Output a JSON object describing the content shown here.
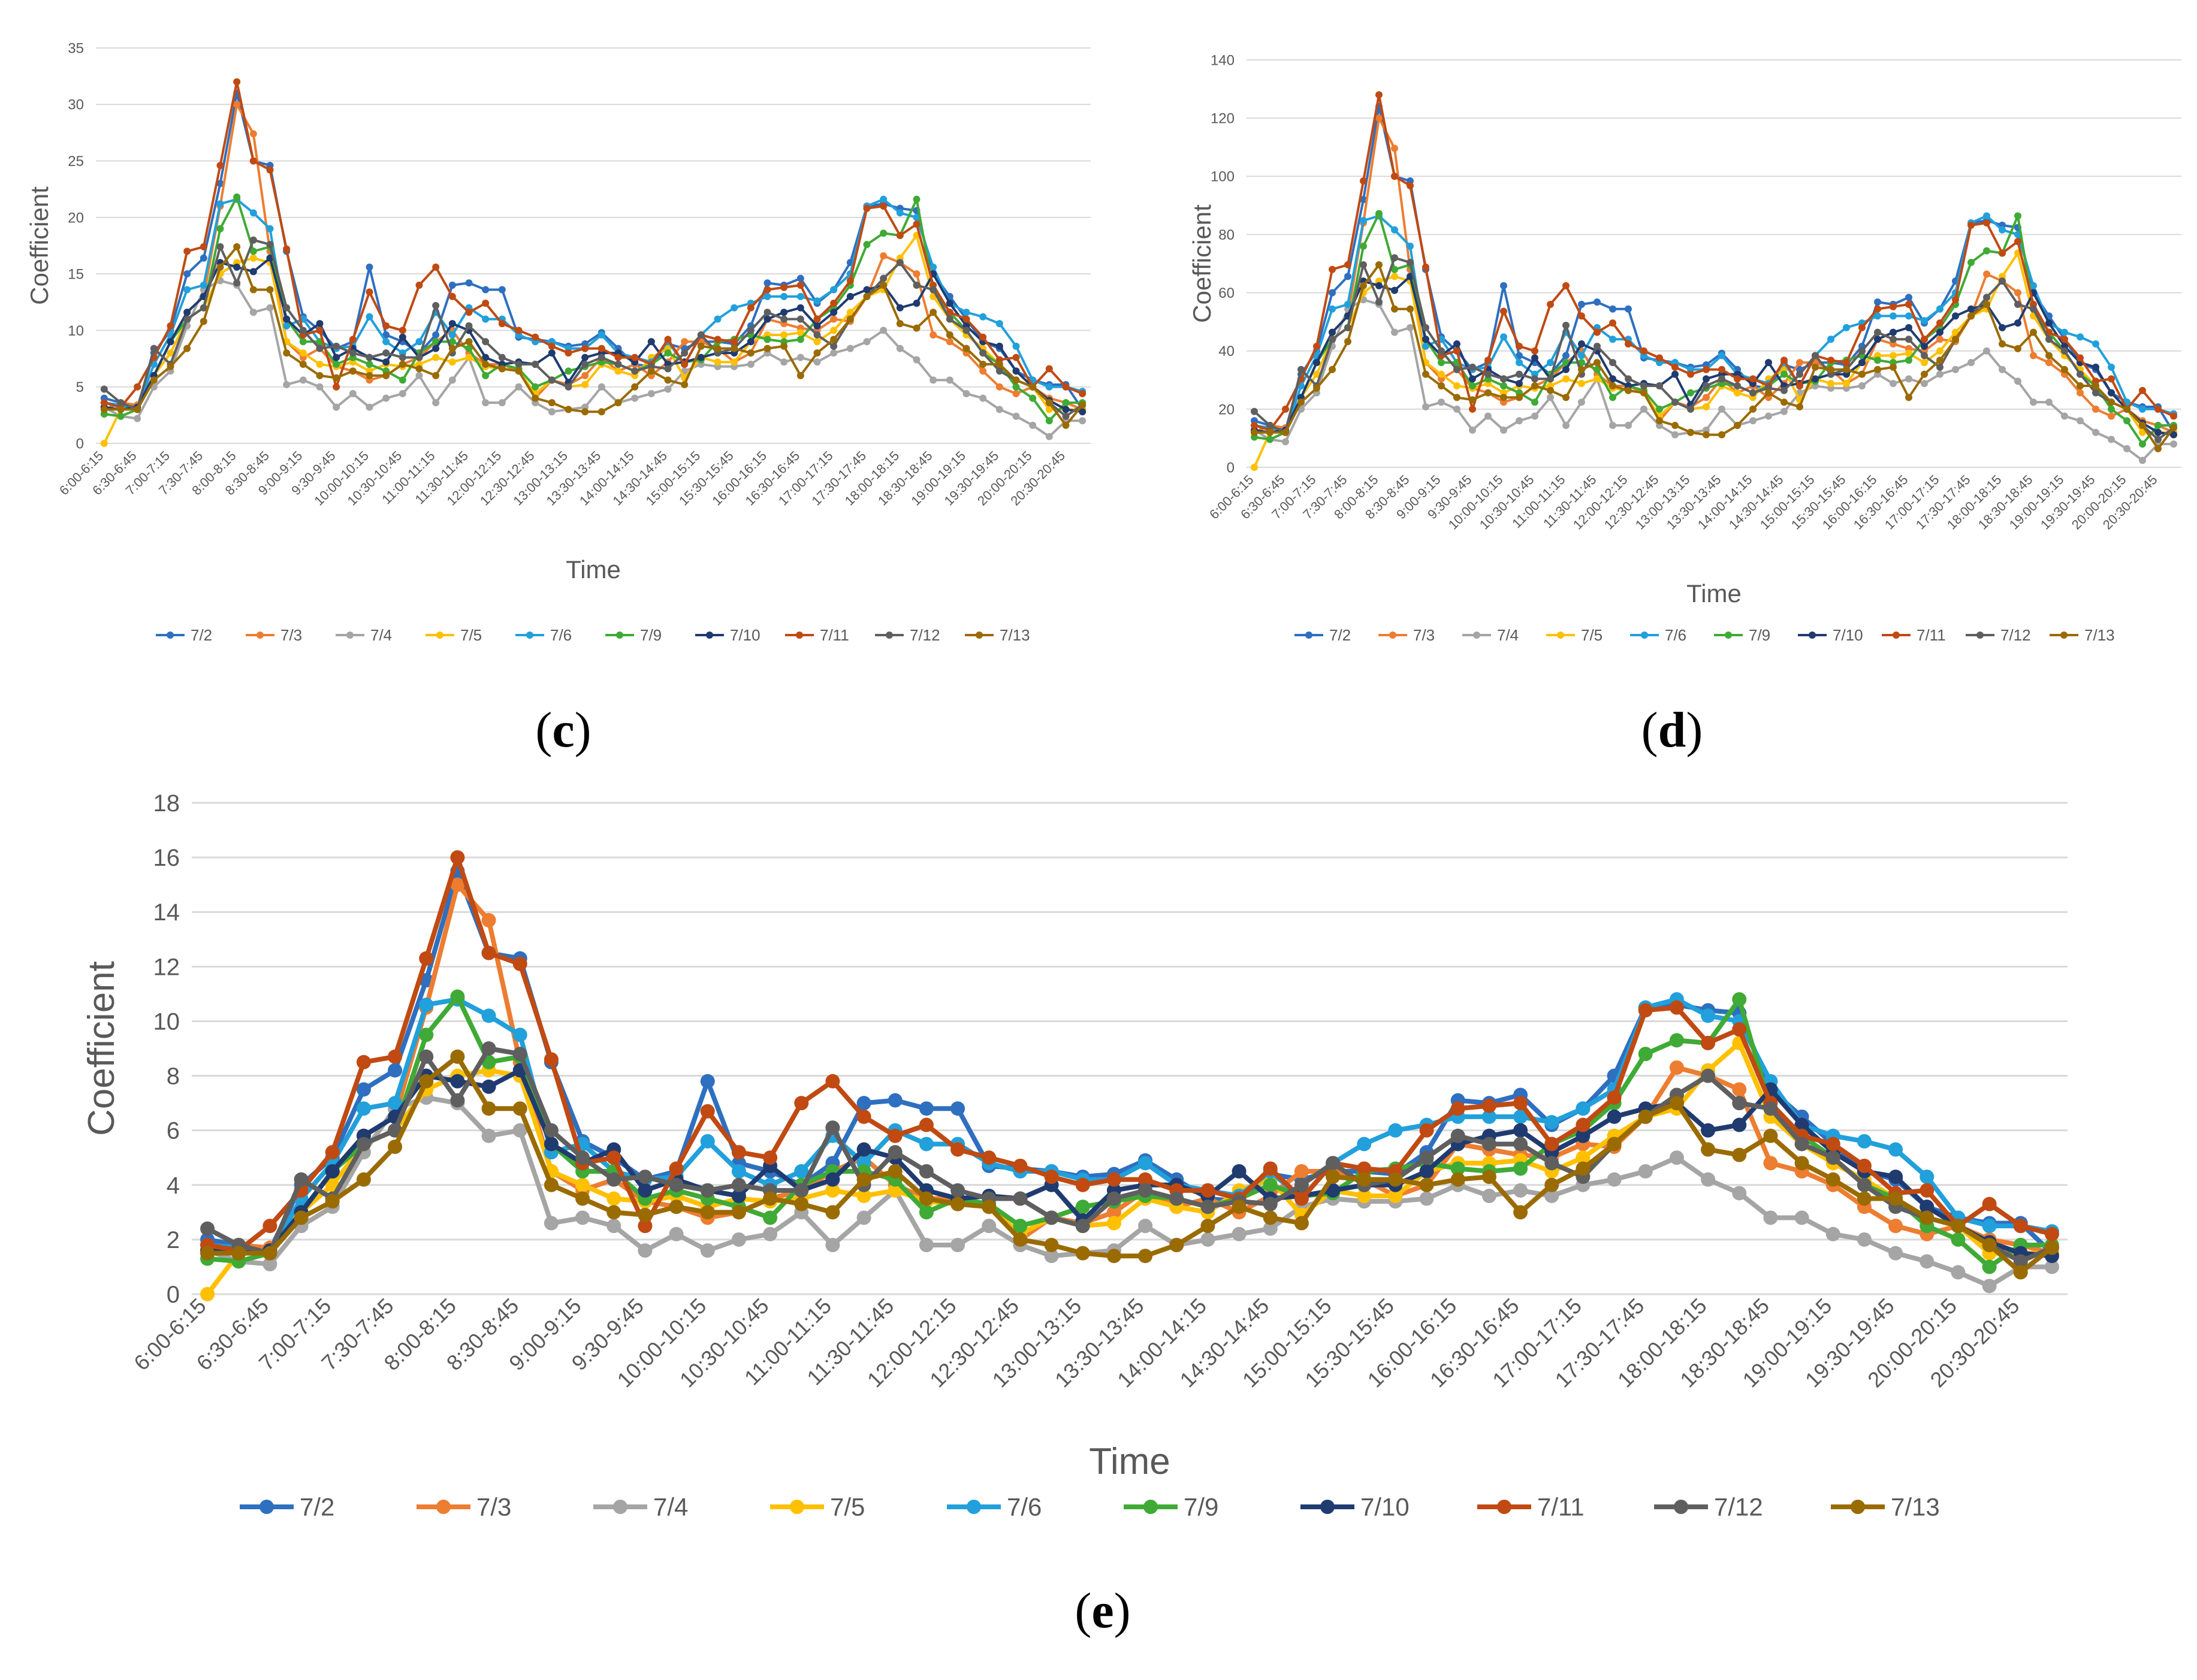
{
  "captions": {
    "c": "c",
    "d": "d",
    "e": "e"
  },
  "chart_data": [
    {
      "panel": "c",
      "type": "line",
      "xlabel": "Time",
      "ylabel": "Coefficient",
      "ylim": [
        0,
        35
      ],
      "yticks": [
        0,
        5,
        10,
        15,
        20,
        25,
        30,
        35
      ],
      "grid": "horizontal",
      "legend_position": "bottom",
      "tick_labels": [
        "6:00-6:15",
        "6:30-6:45",
        "7:00-7:15",
        "7:30-7:45",
        "8:00-8:15",
        "8:30-8:45",
        "9:00-9:15",
        "9:30-9:45",
        "10:00-10:15",
        "10:30-10:45",
        "11:00-11:15",
        "11:30-11:45",
        "12:00-12:15",
        "12:30-12:45",
        "13:00-13:15",
        "13:30-13:45",
        "14:00-14:15",
        "14:30-14:45",
        "15:00-15:15",
        "15:30-15:45",
        "16:00-16:15",
        "16:30-16:45",
        "17:00-17:15",
        "17:30-17:45",
        "18:00-18:15",
        "18:30-18:45",
        "19:00-19:15",
        "19:30-19:45",
        "20:00-20:15",
        "20:30-20:45"
      ],
      "scale": 2.0
    },
    {
      "panel": "d",
      "type": "line",
      "xlabel": "Time",
      "ylabel": "Coefficient",
      "ylim": [
        0,
        140
      ],
      "yticks": [
        0,
        20,
        40,
        60,
        80,
        100,
        120,
        140
      ],
      "grid": "horizontal",
      "legend_position": "bottom",
      "tick_labels": [
        "6:00-6:15",
        "6:30-6:45",
        "7:00-7:15",
        "7:30-7:45",
        "8:00-8:15",
        "8:30-8:45",
        "9:00-9:15",
        "9:30-9:45",
        "10:00-10:15",
        "10:30-10:45",
        "11:00-11:15",
        "11:30-11:45",
        "12:00-12:15",
        "12:30-12:45",
        "13:00-13:15",
        "13:30-13:45",
        "14:00-14:15",
        "14:30-14:45",
        "15:00-15:15",
        "15:30-15:45",
        "16:00-16:15",
        "16:30-16:45",
        "17:00-17:15",
        "17:30-17:45",
        "18:00-18:15",
        "18:30-18:45",
        "19:00-19:15",
        "19:30-19:45",
        "20:00-20:15",
        "20:30-20:45"
      ],
      "scale": 8.0
    },
    {
      "panel": "e",
      "type": "line",
      "xlabel": "Time",
      "ylabel": "Coefficient",
      "ylim": [
        0,
        18
      ],
      "yticks": [
        0,
        2,
        4,
        6,
        8,
        10,
        12,
        14,
        16,
        18
      ],
      "grid": "horizontal",
      "legend_position": "bottom",
      "tick_labels": [
        "6:00-6:15",
        "6:30-6:45",
        "7:00-7:15",
        "7:30-7:45",
        "8:00-8:15",
        "8:30-8:45",
        "9:00-9:15",
        "9:30-9:45",
        "10:00-10:15",
        "10:30-10:45",
        "11:00-11:15",
        "11:30-11:45",
        "12:00-12:15",
        "12:30-12:45",
        "13:00-13:15",
        "13:30-13:45",
        "14:00-14:15",
        "14:30-14:45",
        "15:00-15:15",
        "15:30-15:45",
        "16:00-16:15",
        "16:30-16:45",
        "17:00-17:15",
        "17:30-17:45",
        "18:00-18:15",
        "18:30-18:45",
        "19:00-19:15",
        "19:30-19:45",
        "20:00-20:15",
        "20:30-20:45"
      ],
      "scale": 1.0,
      "x_points": 60,
      "series": [
        {
          "name": "7/2",
          "color": "#2E6FC0",
          "values": [
            2.0,
            1.8,
            1.6,
            4.0,
            5.0,
            7.5,
            8.2,
            11.5,
            15.5,
            12.5,
            12.3,
            8.5,
            5.6,
            5.0,
            4.2,
            4.5,
            7.8,
            4.8,
            4.5,
            4.0,
            4.8,
            7.0,
            7.1,
            6.8,
            6.8,
            4.7,
            4.6,
            4.5,
            4.3,
            4.4,
            4.9,
            4.2,
            3.5,
            3.4,
            4.4,
            4.2,
            4.5,
            4.5,
            4.4,
            5.2,
            7.1,
            7.0,
            7.3,
            6.2,
            6.8,
            8.0,
            10.5,
            10.6,
            10.4,
            10.3,
            7.5,
            6.5,
            5.5,
            4.5,
            4.2,
            3.2,
            2.8,
            2.6,
            2.6,
            1.5
          ]
        },
        {
          "name": "7/3",
          "color": "#ED7D31",
          "values": [
            1.5,
            1.8,
            1.7,
            3.0,
            4.5,
            5.8,
            6.5,
            10.5,
            15.0,
            13.7,
            8.5,
            4.5,
            3.8,
            4.2,
            3.4,
            3.2,
            2.8,
            3.0,
            3.5,
            3.8,
            4.5,
            5.0,
            4.0,
            3.5,
            3.5,
            3.2,
            2.0,
            2.8,
            2.6,
            3.0,
            3.8,
            3.2,
            3.5,
            3.0,
            3.6,
            4.5,
            4.5,
            4.2,
            3.6,
            4.0,
            5.5,
            5.3,
            5.1,
            5.0,
            5.5,
            5.4,
            6.5,
            8.3,
            8.0,
            7.5,
            4.8,
            4.5,
            4.0,
            3.2,
            2.5,
            2.2,
            2.5,
            2.0,
            1.8,
            1.5
          ]
        },
        {
          "name": "7/4",
          "color": "#A5A5A5",
          "values": [
            1.6,
            1.2,
            1.1,
            2.5,
            3.2,
            5.2,
            6.8,
            7.2,
            7.0,
            5.8,
            6.0,
            2.6,
            2.8,
            2.5,
            1.6,
            2.2,
            1.6,
            2.0,
            2.2,
            3.0,
            1.8,
            2.8,
            3.8,
            1.8,
            1.8,
            2.5,
            1.8,
            1.4,
            1.5,
            1.6,
            2.5,
            1.8,
            2.0,
            2.2,
            2.4,
            3.2,
            3.5,
            3.4,
            3.4,
            3.5,
            4.0,
            3.6,
            3.8,
            3.6,
            4.0,
            4.2,
            4.5,
            5.0,
            4.2,
            3.7,
            2.8,
            2.8,
            2.2,
            2.0,
            1.5,
            1.2,
            0.8,
            0.3,
            1.0,
            1.0
          ]
        },
        {
          "name": "7/5",
          "color": "#FFC000",
          "values": [
            0.0,
            1.5,
            1.6,
            3.0,
            4.0,
            5.5,
            6.0,
            7.5,
            8.0,
            8.2,
            8.0,
            4.5,
            4.0,
            3.5,
            3.4,
            3.6,
            3.2,
            3.5,
            3.4,
            3.5,
            3.8,
            3.6,
            3.8,
            3.4,
            3.3,
            3.2,
            2.2,
            2.8,
            2.5,
            2.6,
            3.5,
            3.2,
            3.0,
            3.8,
            4.2,
            2.9,
            3.8,
            3.6,
            3.6,
            4.5,
            4.8,
            4.8,
            4.9,
            4.5,
            5.0,
            5.8,
            6.5,
            6.8,
            8.2,
            9.2,
            6.5,
            5.5,
            4.8,
            4.2,
            3.5,
            2.8,
            2.5,
            1.5,
            1.5,
            1.5
          ]
        },
        {
          "name": "7/6",
          "color": "#21A0DB",
          "values": [
            1.8,
            1.7,
            1.5,
            3.5,
            4.8,
            6.8,
            7.0,
            10.6,
            10.8,
            10.2,
            9.5,
            5.2,
            5.5,
            4.5,
            4.2,
            4.3,
            5.6,
            4.5,
            4.0,
            4.5,
            5.8,
            4.8,
            6.0,
            5.5,
            5.5,
            4.8,
            4.5,
            4.5,
            4.2,
            4.2,
            4.8,
            4.0,
            3.8,
            3.6,
            4.5,
            3.5,
            4.8,
            5.5,
            6.0,
            6.2,
            6.5,
            6.5,
            6.5,
            6.3,
            6.8,
            7.5,
            10.5,
            10.8,
            10.2,
            10.0,
            7.8,
            6.2,
            5.8,
            5.6,
            5.3,
            4.3,
            2.8,
            2.5,
            2.5,
            2.3
          ]
        },
        {
          "name": "7/9",
          "color": "#3FAA35",
          "values": [
            1.3,
            1.2,
            1.5,
            3.0,
            4.5,
            5.5,
            6.0,
            9.5,
            10.9,
            8.5,
            8.7,
            5.5,
            4.5,
            4.5,
            3.5,
            3.8,
            3.5,
            3.2,
            2.8,
            4.0,
            4.5,
            4.5,
            4.2,
            3.0,
            3.5,
            3.3,
            2.5,
            2.8,
            3.2,
            3.4,
            3.6,
            3.5,
            3.2,
            3.5,
            4.0,
            3.6,
            3.7,
            4.5,
            4.6,
            4.8,
            4.6,
            4.5,
            4.6,
            5.5,
            6.0,
            7.0,
            8.8,
            9.3,
            9.2,
            10.8,
            6.8,
            5.8,
            5.0,
            4.0,
            3.5,
            2.5,
            2.0,
            1.0,
            1.8,
            1.8
          ]
        },
        {
          "name": "7/10",
          "color": "#1F3B70",
          "values": [
            1.6,
            1.5,
            1.6,
            3.0,
            4.5,
            5.8,
            6.5,
            8.0,
            7.8,
            7.6,
            8.2,
            5.5,
            4.8,
            5.3,
            3.8,
            4.2,
            3.8,
            3.6,
            4.7,
            3.8,
            4.2,
            5.3,
            5.0,
            3.8,
            3.5,
            3.6,
            3.5,
            4.0,
            2.7,
            3.8,
            4.0,
            4.0,
            3.6,
            4.5,
            3.5,
            3.6,
            3.8,
            4.0,
            4.0,
            4.5,
            5.5,
            5.8,
            6.0,
            5.2,
            5.8,
            6.5,
            6.8,
            7.0,
            6.0,
            6.2,
            7.5,
            6.2,
            5.2,
            4.5,
            4.3,
            3.2,
            2.5,
            1.9,
            1.5,
            1.4
          ]
        },
        {
          "name": "7/11",
          "color": "#C04A12",
          "values": [
            1.8,
            1.6,
            2.5,
            3.8,
            5.2,
            8.5,
            8.7,
            12.3,
            16.0,
            12.5,
            12.1,
            8.6,
            4.8,
            5.0,
            2.5,
            4.6,
            6.7,
            5.2,
            5.0,
            7.0,
            7.8,
            6.5,
            5.8,
            6.2,
            5.3,
            5.0,
            4.7,
            4.3,
            4.0,
            4.2,
            4.2,
            3.8,
            3.8,
            3.5,
            4.6,
            3.5,
            4.8,
            4.6,
            4.5,
            6.0,
            6.8,
            6.9,
            7.0,
            5.5,
            6.2,
            7.2,
            10.4,
            10.5,
            9.2,
            9.7,
            7.0,
            5.8,
            5.5,
            4.7,
            3.7,
            3.8,
            2.5,
            3.3,
            2.5,
            2.2
          ]
        },
        {
          "name": "7/12",
          "color": "#5F5F5F",
          "values": [
            2.4,
            1.8,
            1.5,
            4.2,
            3.5,
            5.5,
            6.0,
            8.7,
            7.1,
            9.0,
            8.8,
            6.0,
            5.0,
            4.2,
            4.3,
            4.0,
            3.8,
            4.0,
            3.8,
            3.8,
            6.1,
            4.0,
            5.2,
            4.5,
            3.8,
            3.5,
            3.5,
            2.8,
            2.5,
            3.5,
            3.8,
            3.5,
            3.2,
            3.4,
            3.3,
            4.0,
            4.8,
            4.0,
            4.2,
            5.0,
            5.8,
            5.5,
            5.5,
            4.8,
            4.3,
            5.5,
            6.5,
            7.3,
            8.0,
            7.0,
            6.8,
            5.5,
            5.0,
            4.0,
            3.2,
            2.8,
            2.5,
            1.8,
            1.2,
            1.7
          ]
        },
        {
          "name": "7/13",
          "color": "#9A6B00",
          "values": [
            1.5,
            1.5,
            1.5,
            2.8,
            3.4,
            4.2,
            5.4,
            7.8,
            8.7,
            6.8,
            6.8,
            4.0,
            3.5,
            3.0,
            2.9,
            3.2,
            3.0,
            3.0,
            3.5,
            3.3,
            3.0,
            4.2,
            4.5,
            3.5,
            3.3,
            3.2,
            2.0,
            1.8,
            1.5,
            1.4,
            1.4,
            1.8,
            2.5,
            3.2,
            2.8,
            2.6,
            4.3,
            4.2,
            4.2,
            4.0,
            4.2,
            4.3,
            3.0,
            4.0,
            4.6,
            5.5,
            6.5,
            7.0,
            5.3,
            5.1,
            5.8,
            4.8,
            4.2,
            3.5,
            3.5,
            2.8,
            2.5,
            1.8,
            0.8,
            1.7
          ]
        }
      ]
    }
  ]
}
